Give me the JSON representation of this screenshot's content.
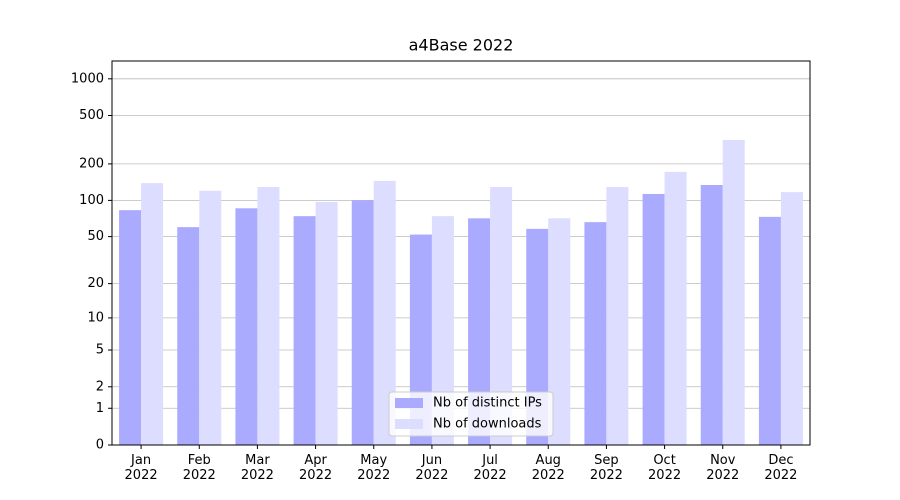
{
  "chart_data": {
    "type": "bar",
    "title": "a4Base 2022",
    "categories": [
      "Jan\n2022",
      "Feb\n2022",
      "Mar\n2022",
      "Apr\n2022",
      "May\n2022",
      "Jun\n2022",
      "Jul\n2022",
      "Aug\n2022",
      "Sep\n2022",
      "Oct\n2022",
      "Nov\n2022",
      "Dec\n2022"
    ],
    "series": [
      {
        "name": "Nb of distinct IPs",
        "color": "#aaaaff",
        "values": [
          83,
          60,
          86,
          74,
          100,
          52,
          71,
          58,
          66,
          113,
          134,
          73
        ]
      },
      {
        "name": "Nb of downloads",
        "color": "#ddddff",
        "values": [
          139,
          120,
          129,
          97,
          145,
          74,
          129,
          71,
          129,
          172,
          315,
          117
        ]
      }
    ],
    "yscale": "log1p",
    "ylim": [
      0,
      1400
    ],
    "yticks": [
      0,
      1,
      2,
      5,
      10,
      20,
      50,
      100,
      200,
      500,
      1000
    ],
    "grid": true,
    "legend": "lower center"
  }
}
